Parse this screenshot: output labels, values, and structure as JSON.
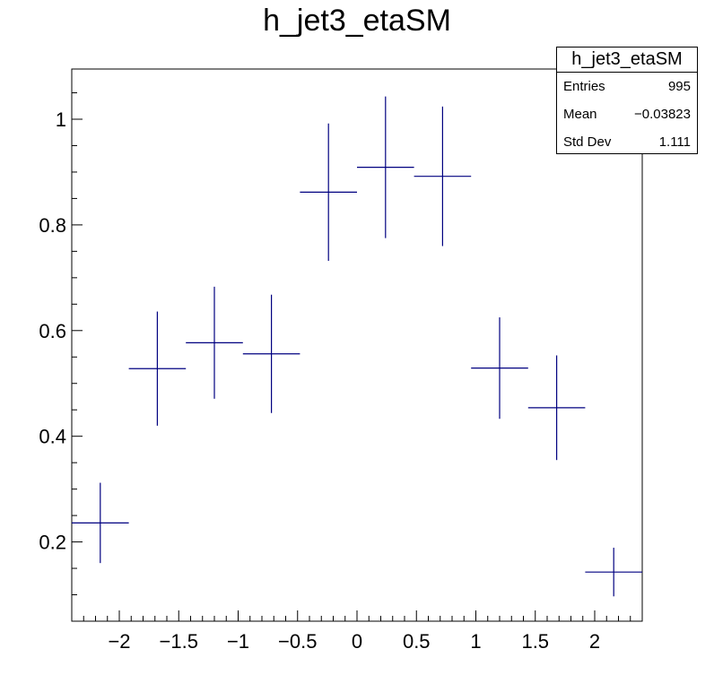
{
  "chart_data": {
    "type": "scatter",
    "title": "h_jet3_etaSM",
    "xlabel": "",
    "ylabel": "",
    "xlim": [
      -2.4,
      2.4
    ],
    "ylim": [
      0.05,
      1.095
    ],
    "x_ticks": [
      -2,
      -1.5,
      -1,
      -0.5,
      0,
      0.5,
      1,
      1.5,
      2
    ],
    "x_tick_labels": [
      "−2",
      "−1.5",
      "−1",
      "−0.5",
      "0",
      "0.5",
      "1",
      "1.5",
      "2"
    ],
    "y_ticks": [
      0.2,
      0.4,
      0.6,
      0.8,
      1
    ],
    "y_tick_labels": [
      "0.2",
      "0.4",
      "0.6",
      "0.8",
      "1"
    ],
    "bin_half_width": 0.24,
    "points": [
      {
        "x": -2.16,
        "y": 0.236,
        "err": 0.076
      },
      {
        "x": -1.68,
        "y": 0.528,
        "err": 0.108
      },
      {
        "x": -1.2,
        "y": 0.577,
        "err": 0.106
      },
      {
        "x": -0.72,
        "y": 0.556,
        "err": 0.112
      },
      {
        "x": -0.24,
        "y": 0.862,
        "err": 0.13
      },
      {
        "x": 0.24,
        "y": 0.909,
        "err": 0.134
      },
      {
        "x": 0.72,
        "y": 0.892,
        "err": 0.132
      },
      {
        "x": 1.2,
        "y": 0.529,
        "err": 0.096
      },
      {
        "x": 1.68,
        "y": 0.454,
        "err": 0.099
      },
      {
        "x": 2.16,
        "y": 0.143,
        "err": 0.046
      }
    ],
    "color": "#000080",
    "grid": false
  },
  "stats": {
    "name": "h_jet3_etaSM",
    "entries_label": "Entries",
    "entries_value": "995",
    "mean_label": "Mean",
    "mean_value": "−0.03823",
    "stddev_label": "Std Dev",
    "stddev_value": "1.111"
  }
}
